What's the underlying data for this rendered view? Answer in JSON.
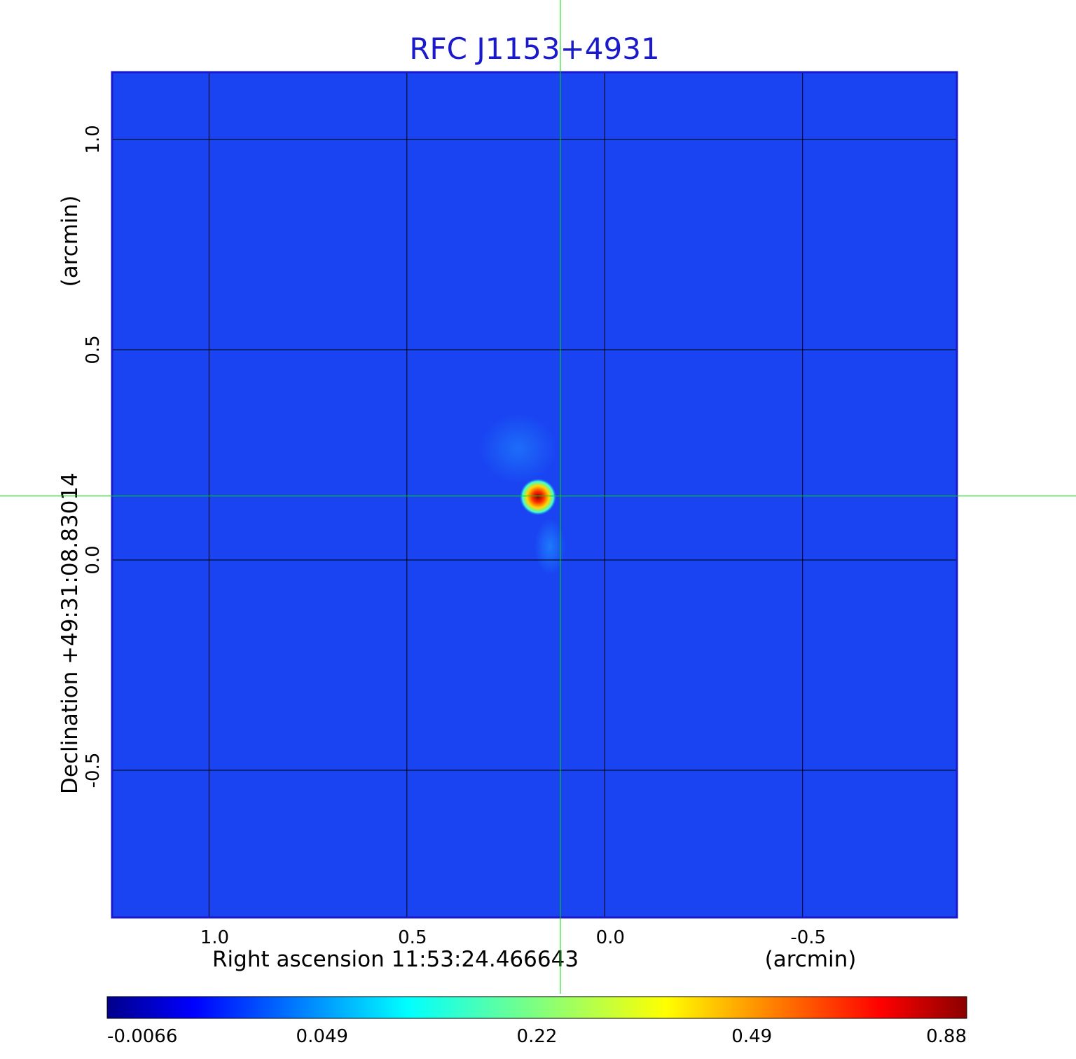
{
  "chart_data": {
    "type": "heatmap",
    "title": "RFC J1153+4931",
    "xlabel": "Right ascension  11:53:24.466643",
    "xunit": "(arcmin)",
    "ylabel": "Declination  +49:31:08.83014",
    "yunit": "(arcmin)",
    "xlim": [
      1.245,
      -0.89
    ],
    "ylim": [
      -0.85,
      1.16
    ],
    "x_ticks": [
      {
        "value": 1.0,
        "label": "1.0"
      },
      {
        "value": 0.5,
        "label": "0.5"
      },
      {
        "value": 0.0,
        "label": "0.0"
      },
      {
        "value": -0.5,
        "label": "-0.5"
      }
    ],
    "y_ticks": [
      {
        "value": 1.0,
        "label": "1.0"
      },
      {
        "value": 0.5,
        "label": "0.5"
      },
      {
        "value": 0.0,
        "label": "0.0"
      },
      {
        "value": -0.5,
        "label": "-0.5"
      }
    ],
    "grid": true,
    "crosshair": {
      "x": 0.112,
      "y": 0.152,
      "color": "#00dd00"
    },
    "background_value": 0.0,
    "colormap": [
      "#00008b",
      "#0000ff",
      "#00ffff",
      "#ffff00",
      "#ff0000",
      "#8b0000"
    ],
    "colorbar": {
      "position": "bottom",
      "tick_labels": [
        "-0.0066",
        "0.049",
        "0.22",
        "0.49",
        "0.88"
      ]
    },
    "peak": {
      "x": 0.112,
      "y": 0.152,
      "value": 0.88
    }
  }
}
